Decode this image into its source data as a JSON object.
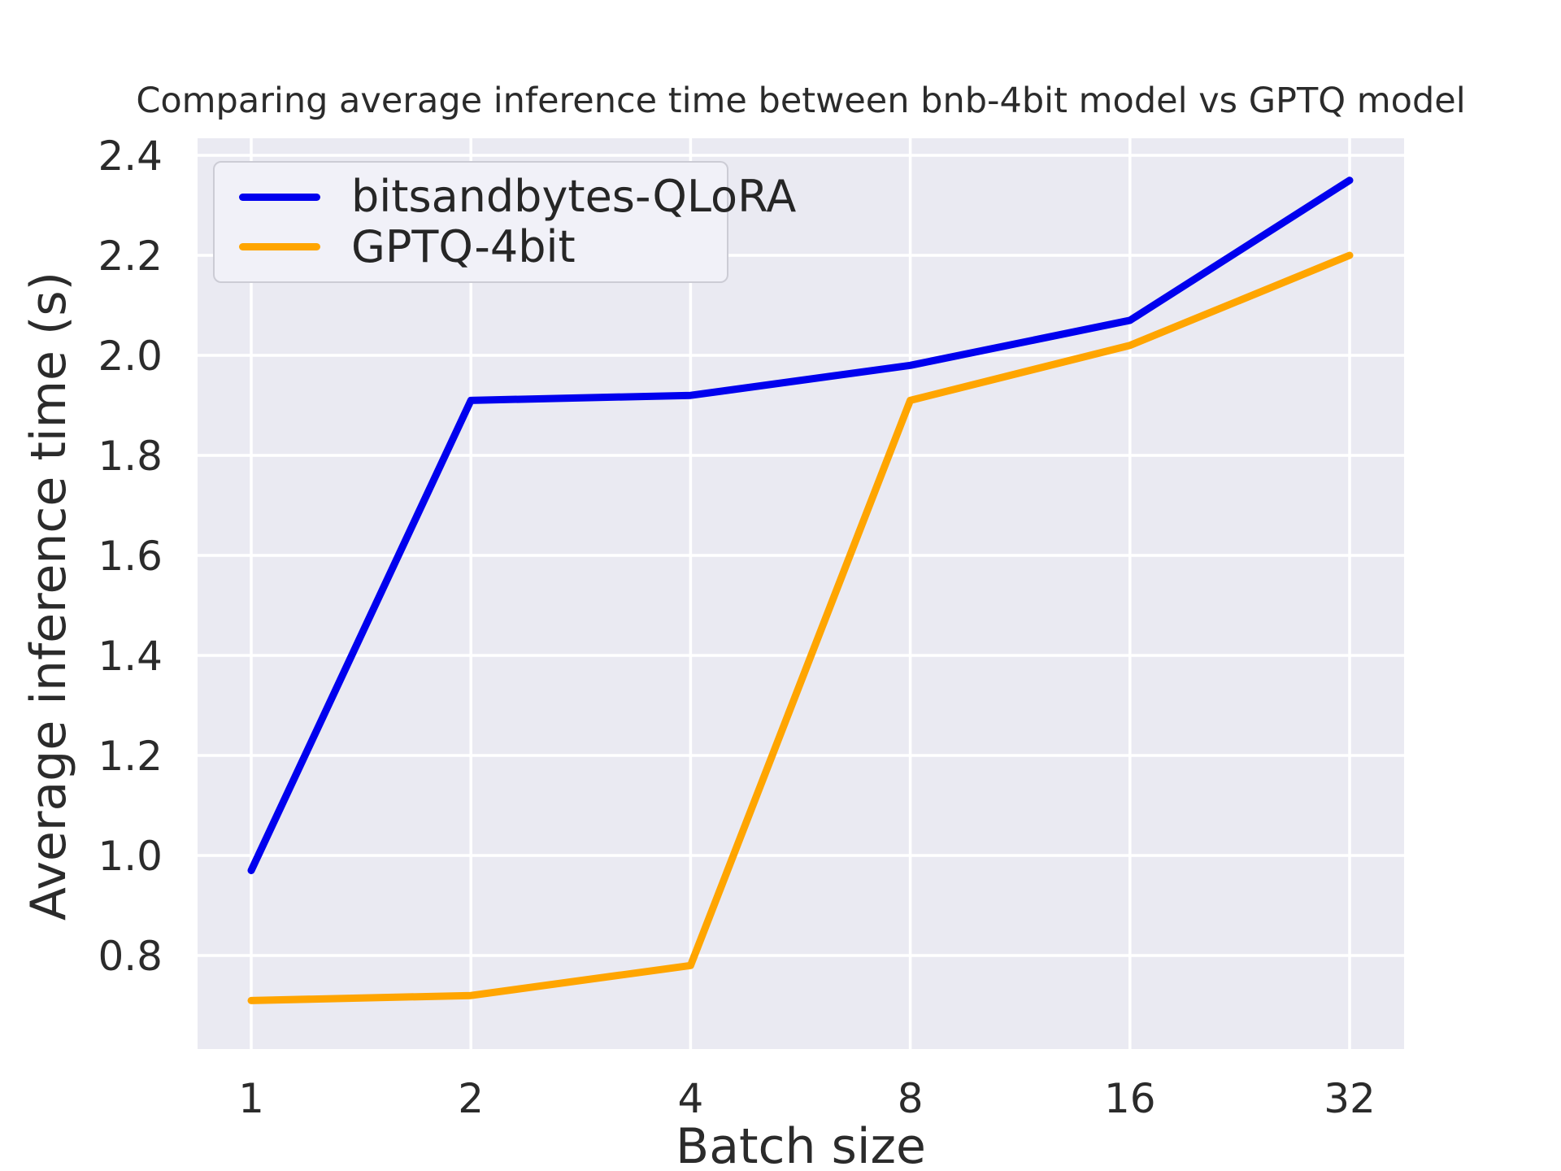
{
  "figure": {
    "background": "#ffffff"
  },
  "chart_data": {
    "type": "line",
    "title": "Comparing average inference time between bnb-4bit model vs GPTQ model",
    "xlabel": "Batch size",
    "ylabel": "Average inference time (s)",
    "x_scale": "log2",
    "categories": [
      1,
      2,
      4,
      8,
      16,
      32
    ],
    "x_tick_labels": [
      "1",
      "2",
      "4",
      "8",
      "16",
      "32"
    ],
    "series": [
      {
        "name": "bitsandbytes-QLoRA",
        "color": "#0000ee",
        "values": [
          0.97,
          1.91,
          1.92,
          1.98,
          2.07,
          2.35
        ]
      },
      {
        "name": "GPTQ-4bit",
        "color": "#ffa500",
        "values": [
          0.71,
          0.72,
          0.78,
          1.91,
          2.02,
          2.2
        ]
      }
    ],
    "y_ticks": [
      0.8,
      1.0,
      1.2,
      1.4,
      1.6,
      1.8,
      2.0,
      2.2,
      2.4
    ],
    "y_tick_labels": [
      "0.8",
      "1.0",
      "1.2",
      "1.4",
      "1.6",
      "1.8",
      "2.0",
      "2.2",
      "2.4"
    ],
    "ylim": [
      0.61,
      2.43
    ],
    "grid": true,
    "legend_position": "upper-left",
    "colors": {
      "plot_background": "#eaeaf2",
      "grid": "#ffffff",
      "text": "#2b2b2b",
      "legend_background": "#f1f1f8",
      "legend_border": "#ccccd5"
    }
  }
}
